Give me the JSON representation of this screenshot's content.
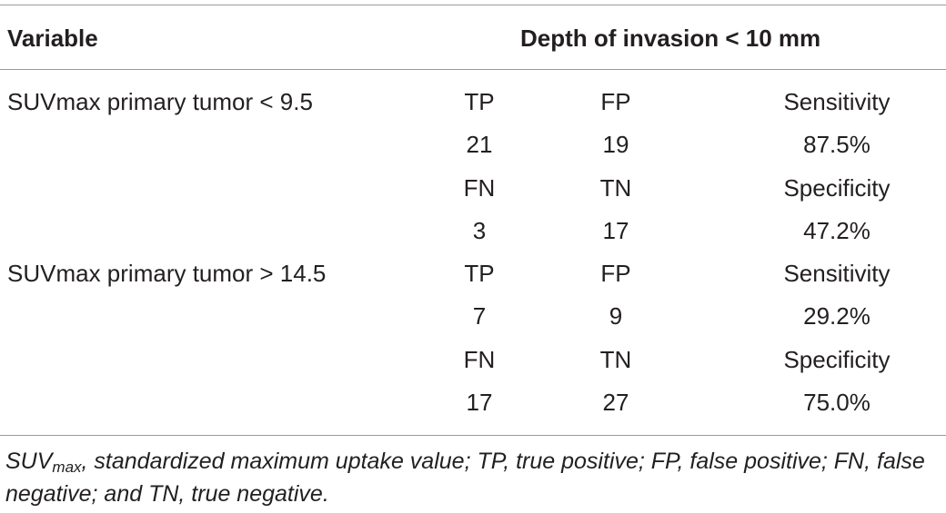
{
  "table": {
    "header": {
      "variable": "Variable",
      "depth": "Depth of invasion < 10 mm"
    },
    "groups": [
      {
        "variable": "SUVmax primary tumor < 9.5",
        "rows": [
          [
            "TP",
            "FP",
            "Sensitivity"
          ],
          [
            "21",
            "19",
            "87.5%"
          ],
          [
            "FN",
            "TN",
            "Specificity"
          ],
          [
            "3",
            "17",
            "47.2%"
          ]
        ]
      },
      {
        "variable": "SUVmax primary tumor > 14.5",
        "rows": [
          [
            "TP",
            "FP",
            "Sensitivity"
          ],
          [
            "7",
            "9",
            "29.2%"
          ],
          [
            "FN",
            "TN",
            "Specificity"
          ],
          [
            "17",
            "27",
            "75.0%"
          ]
        ]
      }
    ]
  },
  "footnote": {
    "suv_base": "SUV",
    "suv_sub": "max",
    "text": ", standardized maximum uptake value; TP, true positive; FP, false positive; FN, false negative; and TN, true negative."
  }
}
